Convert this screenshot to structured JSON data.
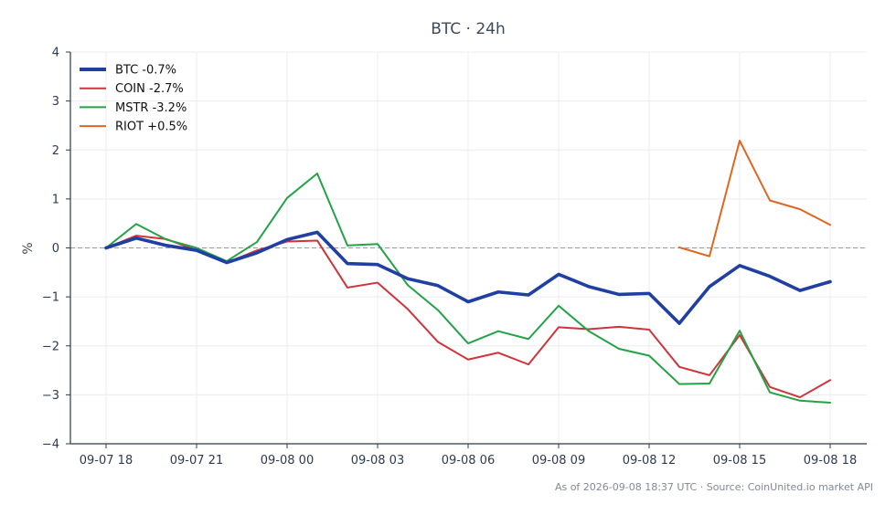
{
  "chart_data": {
    "type": "line",
    "title": "BTC · 24h",
    "xlabel": "",
    "ylabel": "%",
    "ylim": [
      -4,
      4
    ],
    "yticks": [
      -4,
      -3,
      -2,
      -1,
      0,
      1,
      2,
      3,
      4
    ],
    "ytick_labels": [
      "−4",
      "−3",
      "−2",
      "−1",
      "0",
      "1",
      "2",
      "3",
      "4"
    ],
    "x": [
      "2026-09-07 18:00",
      "2026-09-07 19:00",
      "2026-09-07 20:00",
      "2026-09-07 21:00",
      "2026-09-07 22:00",
      "2026-09-07 23:00",
      "2026-09-08 00:00",
      "2026-09-08 01:00",
      "2026-09-08 02:00",
      "2026-09-08 03:00",
      "2026-09-08 04:00",
      "2026-09-08 05:00",
      "2026-09-08 06:00",
      "2026-09-08 07:00",
      "2026-09-08 08:00",
      "2026-09-08 09:00",
      "2026-09-08 10:00",
      "2026-09-08 11:00",
      "2026-09-08 12:00",
      "2026-09-08 13:00",
      "2026-09-08 14:00",
      "2026-09-08 15:00",
      "2026-09-08 16:00",
      "2026-09-08 17:00",
      "2026-09-08 18:00"
    ],
    "xticks": [
      "2026-09-07 18:00",
      "2026-09-07 21:00",
      "2026-09-08 00:00",
      "2026-09-08 03:00",
      "2026-09-08 06:00",
      "2026-09-08 09:00",
      "2026-09-08 12:00",
      "2026-09-08 15:00",
      "2026-09-08 18:00"
    ],
    "xtick_labels": [
      "09-07 18",
      "09-07 21",
      "09-08 00",
      "09-08 03",
      "09-08 06",
      "09-08 09",
      "09-08 12",
      "09-08 15",
      "09-08 18"
    ],
    "reference_line": 0,
    "grid": true,
    "legend_position": "top-left",
    "series": [
      {
        "name": "BTC -0.7%",
        "color": "#1f3fa3",
        "emphasis": true,
        "values": [
          0.0,
          0.2,
          0.05,
          -0.05,
          -0.3,
          -0.1,
          0.17,
          0.32,
          -0.32,
          -0.34,
          -0.63,
          -0.77,
          -1.1,
          -0.9,
          -0.96,
          -0.54,
          -0.79,
          -0.95,
          -0.93,
          -1.54,
          -0.79,
          -0.36,
          -0.58,
          -0.87,
          -0.69
        ]
      },
      {
        "name": "COIN -2.7%",
        "color": "#d0343a",
        "emphasis": false,
        "values": [
          0.0,
          0.25,
          0.18,
          -0.05,
          -0.3,
          -0.05,
          0.13,
          0.15,
          -0.81,
          -0.71,
          -1.25,
          -1.92,
          -2.28,
          -2.14,
          -2.38,
          -1.62,
          -1.66,
          -1.61,
          -1.67,
          -2.43,
          -2.6,
          -1.78,
          -2.84,
          -3.05,
          -2.7
        ]
      },
      {
        "name": "MSTR -3.2%",
        "color": "#22a346",
        "emphasis": false,
        "values": [
          0.0,
          0.49,
          0.17,
          0.0,
          -0.27,
          0.12,
          1.02,
          1.52,
          0.05,
          0.08,
          -0.76,
          -1.27,
          -1.95,
          -1.7,
          -1.86,
          -1.18,
          -1.7,
          -2.06,
          -2.2,
          -2.78,
          -2.77,
          -1.69,
          -2.95,
          -3.12,
          -3.16
        ]
      },
      {
        "name": "RIOT +0.5%",
        "color": "#e0661f",
        "emphasis": false,
        "values": [
          null,
          null,
          null,
          null,
          null,
          null,
          null,
          null,
          null,
          null,
          null,
          null,
          null,
          null,
          null,
          null,
          null,
          null,
          null,
          0.01,
          -0.17,
          2.19,
          0.97,
          0.79,
          0.47
        ]
      }
    ]
  },
  "footnote": "As of 2026-09-08 18:37 UTC · Source: CoinUnited.io market API"
}
